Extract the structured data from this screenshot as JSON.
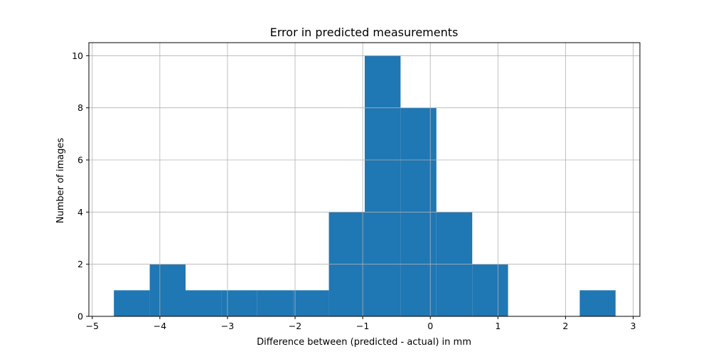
{
  "chart_data": {
    "type": "bar",
    "title": "Error in predicted measurements",
    "xlabel": "Difference between (predicted - actual) in mm",
    "ylabel": "Number of images",
    "xlim": [
      -5.05,
      3.1
    ],
    "ylim": [
      0,
      10.5
    ],
    "xticks": [
      -5,
      -4,
      -3,
      -2,
      -1,
      0,
      1,
      2,
      3
    ],
    "xtick_labels": [
      "−5",
      "−4",
      "−3",
      "−2",
      "−1",
      "0",
      "1",
      "2",
      "3"
    ],
    "yticks": [
      0,
      2,
      4,
      6,
      8,
      10
    ],
    "ytick_labels": [
      "0",
      "2",
      "4",
      "6",
      "8",
      "10"
    ],
    "grid": true,
    "bar_color": "#1f77b4",
    "bins": [
      {
        "x0": -4.68,
        "x1": -4.15,
        "count": 1
      },
      {
        "x0": -4.15,
        "x1": -3.62,
        "count": 2
      },
      {
        "x0": -3.62,
        "x1": -3.09,
        "count": 1
      },
      {
        "x0": -3.09,
        "x1": -2.56,
        "count": 1
      },
      {
        "x0": -2.56,
        "x1": -2.03,
        "count": 1
      },
      {
        "x0": -2.03,
        "x1": -1.5,
        "count": 1
      },
      {
        "x0": -1.5,
        "x1": -0.97,
        "count": 4
      },
      {
        "x0": -0.97,
        "x1": -0.44,
        "count": 10
      },
      {
        "x0": -0.44,
        "x1": 0.09,
        "count": 8
      },
      {
        "x0": 0.09,
        "x1": 0.62,
        "count": 4
      },
      {
        "x0": 0.62,
        "x1": 1.15,
        "count": 2
      },
      {
        "x0": 1.15,
        "x1": 1.68,
        "count": 0
      },
      {
        "x0": 1.68,
        "x1": 2.21,
        "count": 0
      },
      {
        "x0": 2.21,
        "x1": 2.74,
        "count": 1
      }
    ]
  }
}
